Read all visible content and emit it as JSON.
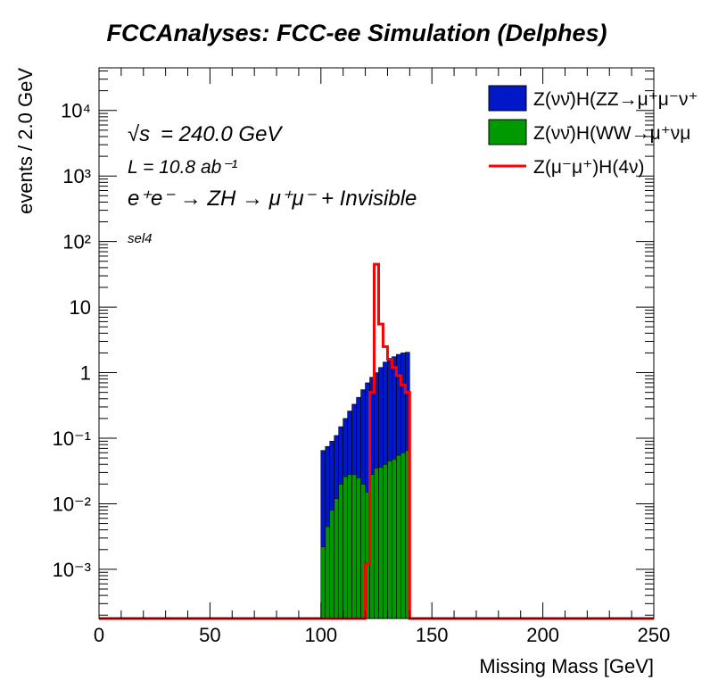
{
  "title": "FCCAnalyses: FCC-ee Simulation (Delphes)",
  "annotations": {
    "sqrt_s_symbol": "√s",
    "energy": "= 240.0 GeV",
    "lumi": "L = 10.8 ab⁻¹",
    "process": "e⁺e⁻ → ZH → μ⁺μ⁻ + Invisible",
    "selection": "sel4"
  },
  "colors": {
    "zz": "#0018c8",
    "ww": "#009a00",
    "signal": "#ff0000"
  },
  "chart_data": {
    "type": "histogram",
    "title": "FCCAnalyses: FCC-ee Simulation (Delphes)",
    "xlabel": "Missing Mass [GeV]",
    "ylabel": "events / 2.0 GeV",
    "xlim": [
      0,
      250
    ],
    "ylim_log10": [
      -3.75,
      4.65
    ],
    "log_y": true,
    "bin_width": 2.0,
    "x_ticks": [
      "0",
      "50",
      "100",
      "150",
      "200",
      "250"
    ],
    "y_ticks": [
      {
        "value": 0.001,
        "label": "10⁻³"
      },
      {
        "value": 0.01,
        "label": "10⁻²"
      },
      {
        "value": 0.1,
        "label": "10⁻¹"
      },
      {
        "value": 1,
        "label": "1"
      },
      {
        "value": 10,
        "label": "10"
      },
      {
        "value": 100,
        "label": "10²"
      },
      {
        "value": 1000,
        "label": "10³"
      },
      {
        "value": 10000,
        "label": "10⁴"
      }
    ],
    "legend_position": "top-right",
    "series": [
      {
        "name": "Z(νν̄)H(ZZ→μ⁺μ⁻ν⁺",
        "style": "stack-fill",
        "bin_low_edges": [
          100,
          102,
          104,
          106,
          108,
          110,
          112,
          114,
          116,
          118,
          120,
          122,
          124,
          126,
          128,
          130,
          132,
          134,
          136,
          138
        ],
        "values": [
          0.065,
          0.075,
          0.09,
          0.11,
          0.15,
          0.2,
          0.26,
          0.33,
          0.42,
          0.55,
          0.7,
          0.85,
          1.0,
          1.2,
          1.45,
          1.6,
          1.75,
          1.9,
          2.0,
          2.05
        ]
      },
      {
        "name": "Z(νν̄)H(WW→μ⁺νμ",
        "style": "fill",
        "bin_low_edges": [
          100,
          102,
          104,
          106,
          108,
          110,
          112,
          114,
          116,
          118,
          120,
          122,
          124,
          126,
          128,
          130,
          132,
          134,
          136,
          138
        ],
        "values": [
          0.0022,
          0.0045,
          0.008,
          0.012,
          0.02,
          0.026,
          0.028,
          0.028,
          0.025,
          0.02,
          0.015,
          0.028,
          0.035,
          0.036,
          0.04,
          0.045,
          0.048,
          0.055,
          0.06,
          0.065
        ]
      },
      {
        "name": "Z(μ⁻μ⁺)H(4ν)",
        "style": "line",
        "bin_low_edges": [
          120,
          122,
          124,
          126,
          128,
          130,
          132,
          134,
          136,
          138
        ],
        "values": [
          0.0012,
          0.5,
          45,
          5.5,
          2.5,
          1.6,
          1.2,
          0.9,
          0.65,
          0.5
        ]
      }
    ]
  }
}
